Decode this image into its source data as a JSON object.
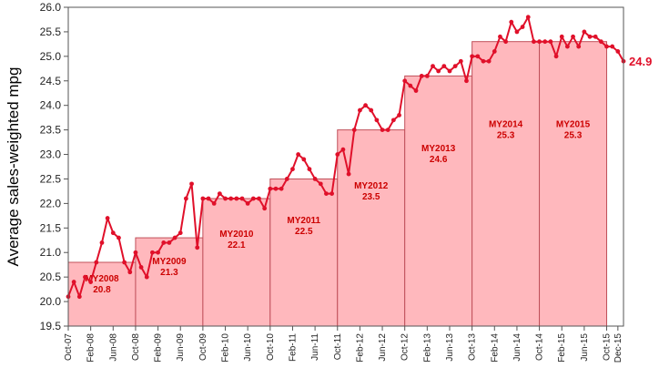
{
  "chart_data": {
    "type": "line",
    "ylabel": "Average sales-weighted mpg",
    "xlabel": "",
    "ylim": [
      19.5,
      26.0
    ],
    "y_ticks": [
      "19.5",
      "20.0",
      "20.5",
      "21.0",
      "21.5",
      "22.0",
      "22.5",
      "23.0",
      "23.5",
      "24.0",
      "24.5",
      "25.0",
      "25.5",
      "26.0"
    ],
    "x_ticks": [
      "Oct-07",
      "Feb-08",
      "Jun-08",
      "Oct-08",
      "Feb-09",
      "Jun-09",
      "Oct-09",
      "Feb-10",
      "Jun-10",
      "Oct-10",
      "Feb-11",
      "Jun-11",
      "Oct-11",
      "Feb-12",
      "Jun-12",
      "Oct-12",
      "Feb-13",
      "Jun-13",
      "Oct-13",
      "Feb-14",
      "Jun-14",
      "Oct-14",
      "Feb-15",
      "Jun-15",
      "Oct-15",
      "Dec-15"
    ],
    "grid": false,
    "colors": {
      "line": "#e0102a",
      "bar_fill": "#ffb8bd",
      "bar_stroke": "#c0505a",
      "label": "#cc0000"
    },
    "model_years": [
      {
        "name": "MY2008",
        "value": 20.8,
        "value_label": "20.8",
        "start": "Oct-07",
        "end": "Sep-08"
      },
      {
        "name": "MY2009",
        "value": 21.3,
        "value_label": "21.3",
        "start": "Oct-08",
        "end": "Sep-09"
      },
      {
        "name": "MY2010",
        "value": 22.1,
        "value_label": "22.1",
        "start": "Oct-09",
        "end": "Sep-10"
      },
      {
        "name": "MY2011",
        "value": 22.5,
        "value_label": "22.5",
        "start": "Oct-10",
        "end": "Sep-11"
      },
      {
        "name": "MY2012",
        "value": 23.5,
        "value_label": "23.5",
        "start": "Oct-11",
        "end": "Sep-12"
      },
      {
        "name": "MY2013",
        "value": 24.6,
        "value_label": "24.6",
        "start": "Oct-12",
        "end": "Sep-13"
      },
      {
        "name": "MY2014",
        "value": 25.3,
        "value_label": "25.3",
        "start": "Oct-13",
        "end": "Sep-14"
      },
      {
        "name": "MY2015",
        "value": 25.3,
        "value_label": "25.3",
        "start": "Oct-14",
        "end": "Sep-15"
      }
    ],
    "monthly": {
      "start": "Oct-07",
      "values": [
        20.1,
        20.4,
        20.1,
        20.5,
        20.4,
        20.8,
        21.2,
        21.7,
        21.4,
        21.3,
        20.8,
        20.6,
        21.0,
        20.7,
        20.5,
        21.0,
        21.0,
        21.2,
        21.2,
        21.3,
        21.4,
        22.1,
        22.4,
        21.1,
        22.1,
        22.1,
        22.0,
        22.2,
        22.1,
        22.1,
        22.1,
        22.1,
        22.0,
        22.1,
        22.1,
        21.9,
        22.3,
        22.3,
        22.3,
        22.5,
        22.7,
        23.0,
        22.9,
        22.7,
        22.5,
        22.4,
        22.2,
        22.2,
        23.0,
        23.1,
        22.6,
        23.5,
        23.9,
        24.0,
        23.9,
        23.7,
        23.5,
        23.5,
        23.7,
        23.8,
        24.5,
        24.4,
        24.3,
        24.6,
        24.6,
        24.8,
        24.7,
        24.8,
        24.7,
        24.8,
        24.9,
        24.5,
        25.0,
        25.0,
        24.9,
        24.9,
        25.1,
        25.4,
        25.3,
        25.7,
        25.5,
        25.6,
        25.8,
        25.3,
        25.3,
        25.3,
        25.3,
        25.0,
        25.4,
        25.2,
        25.4,
        25.2,
        25.5,
        25.4,
        25.4,
        25.3,
        25.2,
        25.2,
        25.1,
        24.9
      ]
    },
    "last_value_label": "24.9"
  }
}
